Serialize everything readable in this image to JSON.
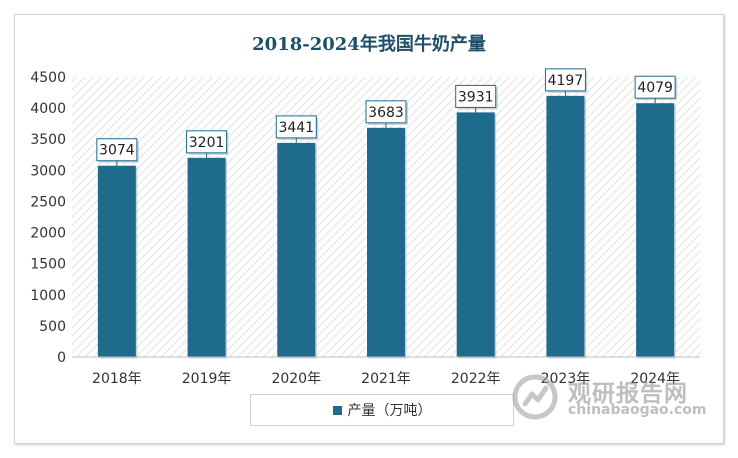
{
  "chart_data": {
    "type": "bar",
    "title": "2018-2024年我国牛奶产量",
    "categories": [
      "2018年",
      "2019年",
      "2020年",
      "2021年",
      "2022年",
      "2023年",
      "2024年"
    ],
    "series": [
      {
        "name": "产量（万吨）",
        "values": [
          3074,
          3201,
          3441,
          3683,
          3931,
          4197,
          4079
        ]
      }
    ],
    "ylim": [
      0,
      4500
    ],
    "yticks": [
      0,
      500,
      1000,
      1500,
      2000,
      2500,
      3000,
      3500,
      4000,
      4500
    ],
    "xlabel": "",
    "ylabel": "",
    "grid": false,
    "legend_position": "bottom",
    "bar_color": "#1e6b8c",
    "data_labels": true
  },
  "watermark": {
    "cn_text": "观研报告网",
    "en_text": "chinabaogao.com"
  }
}
